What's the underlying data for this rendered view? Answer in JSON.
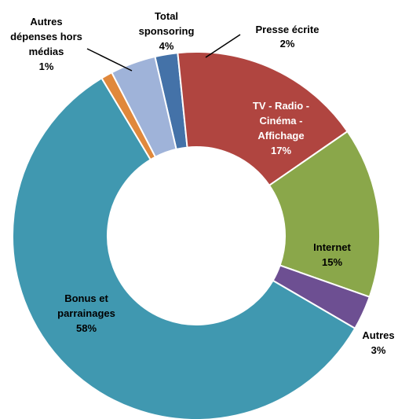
{
  "chart_data": {
    "type": "donut",
    "title": "",
    "slices": [
      {
        "name": "Presse écrite",
        "value_label": "2%",
        "value": 2,
        "color": "#4472a8",
        "label_lines": [
          "Presse écrite",
          "2%"
        ],
        "label_color": "#000000"
      },
      {
        "name": "TV - Radio - Cinéma - Affichage",
        "value_label": "17%",
        "value": 17,
        "color": "#b04540",
        "label_lines": [
          "TV - Radio -",
          "Cinéma -",
          "Affichage",
          "17%"
        ],
        "label_color": "#ffffff"
      },
      {
        "name": "Internet",
        "value_label": "15%",
        "value": 15,
        "color": "#8aa74a",
        "label_lines": [
          "Internet",
          "15%"
        ],
        "label_color": "#000000"
      },
      {
        "name": "Autres",
        "value_label": "3%",
        "value": 3,
        "color": "#6d4f92",
        "label_lines": [
          "Autres",
          "3%"
        ],
        "label_color": "#000000"
      },
      {
        "name": "Bonus et parrainages",
        "value_label": "58%",
        "value": 58,
        "color": "#4098b0",
        "label_lines": [
          "Bonus et",
          "parrainages",
          "58%"
        ],
        "label_color": "#000000"
      },
      {
        "name": "Autres dépenses hors médias",
        "value_label": "1%",
        "value": 1,
        "color": "#e0883c",
        "label_lines": [
          "Autres",
          "dépenses hors",
          "médias",
          "1%"
        ],
        "label_color": "#000000"
      },
      {
        "name": "Total sponsoring",
        "value_label": "4%",
        "value": 4,
        "color": "#9fb3d9",
        "label_lines": [
          "Total",
          "sponsoring",
          "4%"
        ],
        "label_color": "#000000"
      }
    ]
  }
}
